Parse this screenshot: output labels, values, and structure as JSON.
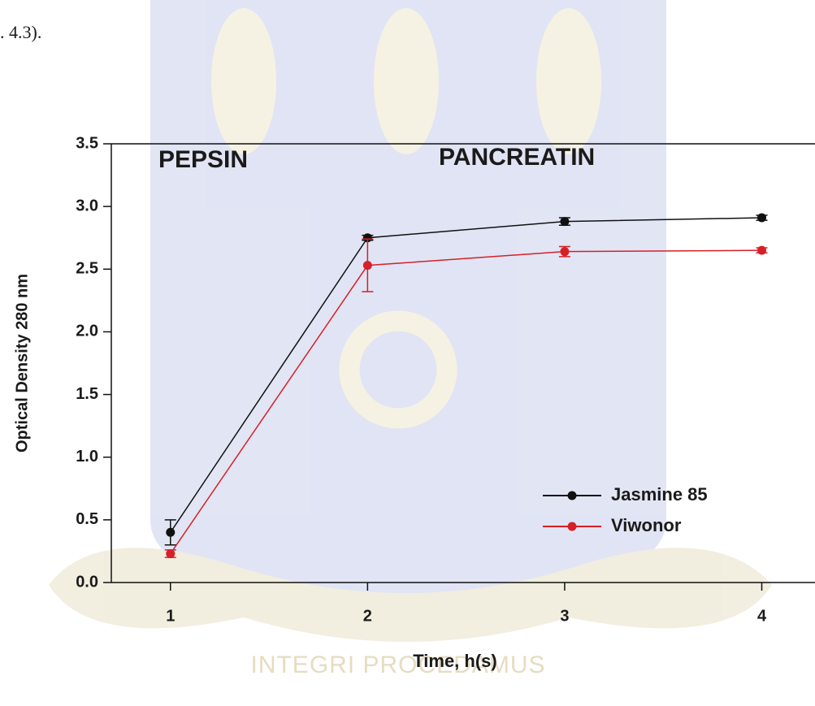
{
  "page_fragment": ". 4.3).",
  "watermark": "INTEGRI PROCEDAMUS",
  "chart_data": {
    "type": "line",
    "annotations": [
      "PEPSIN",
      "PANCREATIN"
    ],
    "x_label": "Time, h(s)",
    "y_label": "Optical Density  280 nm",
    "x": [
      1,
      2,
      3,
      4
    ],
    "series": [
      {
        "name": "Jasmine 85",
        "color": "#111111",
        "values": [
          0.4,
          2.75,
          2.88,
          2.91
        ],
        "errors": [
          0.1,
          0.02,
          0.03,
          0.02
        ]
      },
      {
        "name": "Viwonor",
        "color": "#d62027",
        "values": [
          0.23,
          2.53,
          2.64,
          2.65
        ],
        "errors": [
          0.03,
          0.21,
          0.04,
          0.02
        ]
      }
    ],
    "xlim": [
      0.7,
      4.27
    ],
    "ylim": [
      0,
      3.5
    ],
    "xticks": [
      1,
      2,
      3,
      4
    ],
    "yticks": [
      {
        "value": 0,
        "label": "0.0"
      },
      0.5,
      {
        "value": 1,
        "label": "1.0"
      },
      1.5,
      {
        "value": 2,
        "label": "2.0"
      },
      2.5,
      {
        "value": 3,
        "label": "3.0"
      },
      3.5
    ],
    "legend": "lower right"
  }
}
